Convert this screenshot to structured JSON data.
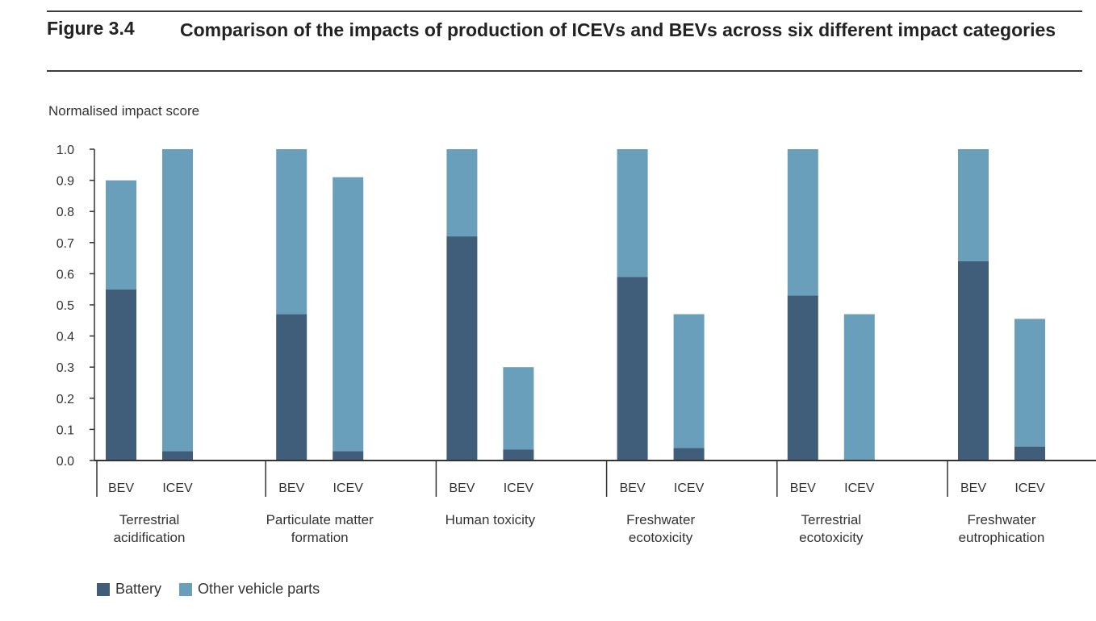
{
  "figure": {
    "label": "Figure 3.4",
    "title": "Comparison of the impacts of production of ICEVs and BEVs across six different impact categories"
  },
  "colors": {
    "battery": "#405e7a",
    "other": "#6a9fbc",
    "axis": "#333333"
  },
  "chart_data": {
    "type": "bar",
    "stacked": true,
    "title": "Comparison of the impacts of production of ICEVs and BEVs across six different impact categories",
    "ylabel": "Normalised impact score",
    "xlabel": "",
    "ylim": [
      0,
      1.0
    ],
    "yticks": [
      "0.0",
      "0.1",
      "0.2",
      "0.3",
      "0.4",
      "0.5",
      "0.6",
      "0.7",
      "0.8",
      "0.9",
      "1.0"
    ],
    "legend_position": "bottom-left",
    "groups": [
      {
        "name": "Terrestrial acidification",
        "lines": [
          "Terrestrial",
          "acidification"
        ],
        "bars": [
          {
            "label": "BEV",
            "battery": 0.55,
            "other": 0.35
          },
          {
            "label": "ICEV",
            "battery": 0.03,
            "other": 0.97
          }
        ]
      },
      {
        "name": "Particulate matter formation",
        "lines": [
          "Particulate matter",
          "formation"
        ],
        "bars": [
          {
            "label": "BEV",
            "battery": 0.47,
            "other": 0.53
          },
          {
            "label": "ICEV",
            "battery": 0.03,
            "other": 0.88
          }
        ]
      },
      {
        "name": "Human toxicity",
        "lines": [
          "Human toxicity"
        ],
        "bars": [
          {
            "label": "BEV",
            "battery": 0.72,
            "other": 0.28
          },
          {
            "label": "ICEV",
            "battery": 0.035,
            "other": 0.265
          }
        ]
      },
      {
        "name": "Freshwater ecotoxicity",
        "lines": [
          "Freshwater",
          "ecotoxicity"
        ],
        "bars": [
          {
            "label": "BEV",
            "battery": 0.59,
            "other": 0.41
          },
          {
            "label": "ICEV",
            "battery": 0.04,
            "other": 0.43
          }
        ]
      },
      {
        "name": "Terrestrial ecotoxicity",
        "lines": [
          "Terrestrial",
          "ecotoxicity"
        ],
        "bars": [
          {
            "label": "BEV",
            "battery": 0.53,
            "other": 0.47
          },
          {
            "label": "ICEV",
            "battery": 0.0,
            "other": 0.47
          }
        ]
      },
      {
        "name": "Freshwater eutrophication",
        "lines": [
          "Freshwater",
          "eutrophication"
        ],
        "bars": [
          {
            "label": "BEV",
            "battery": 0.64,
            "other": 0.36
          },
          {
            "label": "ICEV",
            "battery": 0.045,
            "other": 0.41
          }
        ]
      }
    ],
    "series": [
      {
        "key": "battery",
        "name": "Battery"
      },
      {
        "key": "other",
        "name": "Other vehicle parts"
      }
    ]
  }
}
